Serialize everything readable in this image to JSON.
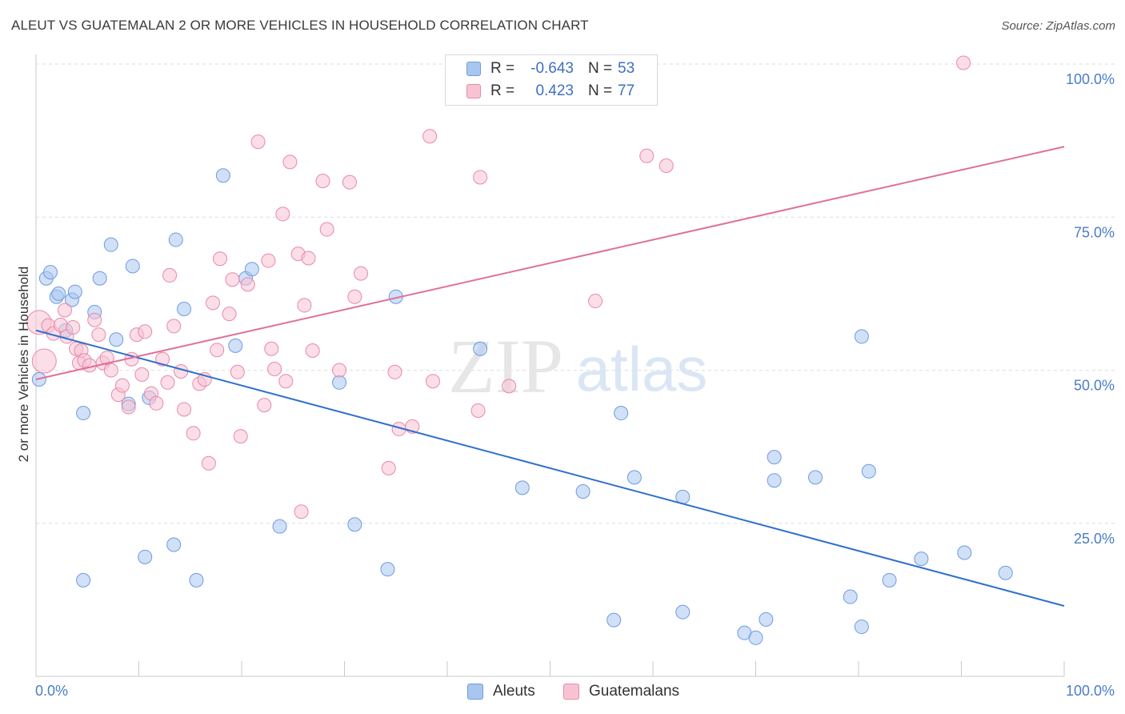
{
  "title": "ALEUT VS GUATEMALAN 2 OR MORE VEHICLES IN HOUSEHOLD CORRELATION CHART",
  "source": "Source: ZipAtlas.com",
  "watermark": {
    "zip": "ZIP",
    "atlas": "atlas"
  },
  "legend": {
    "r_label": "R =",
    "n_label": "N =",
    "rows": [
      {
        "r": "-0.643",
        "n": "53",
        "color": "#a9c6f0",
        "border": "#6f9be0"
      },
      {
        "r": "0.423",
        "n": "77",
        "color": "#f7c3d3",
        "border": "#e889a8"
      }
    ]
  },
  "bottom_legend": [
    {
      "label": "Aleuts",
      "color": "#a9c6f0",
      "border": "#6f9be0"
    },
    {
      "label": "Guatemalans",
      "color": "#f7c3d3",
      "border": "#e889a8"
    }
  ],
  "chart_data": {
    "type": "scatter",
    "ylabel": "2 or more Vehicles in Household",
    "xlim": [
      0,
      100
    ],
    "ylim": [
      0,
      100
    ],
    "x_tick_labels": [
      "0.0%",
      "100.0%"
    ],
    "y_tick_labels": [
      "25.0%",
      "50.0%",
      "75.0%",
      "100.0%"
    ],
    "y_ticks": [
      25,
      50,
      75,
      100
    ],
    "grid": true,
    "series": [
      {
        "name": "Aleuts",
        "color": "#a9c6f0",
        "stroke": "#6f9be0",
        "trend": {
          "x": [
            0,
            100
          ],
          "y": [
            56.5,
            11.5
          ],
          "color": "#2f6fcf"
        },
        "points": [
          [
            0.3,
            48.5
          ],
          [
            1.0,
            65.0
          ],
          [
            1.4,
            66.0
          ],
          [
            2.0,
            62.0
          ],
          [
            2.2,
            62.5
          ],
          [
            2.9,
            56.5
          ],
          [
            3.5,
            61.5
          ],
          [
            3.8,
            62.8
          ],
          [
            4.6,
            43.0
          ],
          [
            4.6,
            15.7
          ],
          [
            5.7,
            59.5
          ],
          [
            6.2,
            65.0
          ],
          [
            7.3,
            70.5
          ],
          [
            7.8,
            55.0
          ],
          [
            9.0,
            44.5
          ],
          [
            9.4,
            67.0
          ],
          [
            10.6,
            19.5
          ],
          [
            11.0,
            45.5
          ],
          [
            13.4,
            21.5
          ],
          [
            13.6,
            71.3
          ],
          [
            14.4,
            60.0
          ],
          [
            15.6,
            15.7
          ],
          [
            18.2,
            81.8
          ],
          [
            19.4,
            54.0
          ],
          [
            20.4,
            65.0
          ],
          [
            21.0,
            66.5
          ],
          [
            23.7,
            24.5
          ],
          [
            29.5,
            48.0
          ],
          [
            31.0,
            24.8
          ],
          [
            34.2,
            17.5
          ],
          [
            35.0,
            62.0
          ],
          [
            43.2,
            53.5
          ],
          [
            47.3,
            30.8
          ],
          [
            53.2,
            30.2
          ],
          [
            56.2,
            9.2
          ],
          [
            56.9,
            43.0
          ],
          [
            58.2,
            32.5
          ],
          [
            62.9,
            10.5
          ],
          [
            62.9,
            29.3
          ],
          [
            68.9,
            7.1
          ],
          [
            70.0,
            6.3
          ],
          [
            71.0,
            9.3
          ],
          [
            71.8,
            32.0
          ],
          [
            71.8,
            35.8
          ],
          [
            75.8,
            32.5
          ],
          [
            79.2,
            13.0
          ],
          [
            80.3,
            8.1
          ],
          [
            80.3,
            55.5
          ],
          [
            81.0,
            33.5
          ],
          [
            83.0,
            15.7
          ],
          [
            86.1,
            19.2
          ],
          [
            90.3,
            20.2
          ],
          [
            94.3,
            16.9
          ]
        ]
      },
      {
        "name": "Guatemalans",
        "color": "#f7c3d3",
        "stroke": "#e889a8",
        "trend": {
          "x": [
            0,
            100
          ],
          "y": [
            48.5,
            86.5
          ],
          "color": "#e0709a"
        },
        "points": [
          [
            0.3,
            57.8
          ],
          [
            0.8,
            51.5
          ],
          [
            1.2,
            57.3
          ],
          [
            1.7,
            56.0
          ],
          [
            2.4,
            57.4
          ],
          [
            2.8,
            59.8
          ],
          [
            3.0,
            55.5
          ],
          [
            3.6,
            57.0
          ],
          [
            3.9,
            53.5
          ],
          [
            4.2,
            51.2
          ],
          [
            4.4,
            53.2
          ],
          [
            4.7,
            51.6
          ],
          [
            5.2,
            50.8
          ],
          [
            5.7,
            58.2
          ],
          [
            6.1,
            55.8
          ],
          [
            6.5,
            51.2
          ],
          [
            6.9,
            52.0
          ],
          [
            7.3,
            50.0
          ],
          [
            8.0,
            46.0
          ],
          [
            8.4,
            47.5
          ],
          [
            9.0,
            44.0
          ],
          [
            9.3,
            51.8
          ],
          [
            9.8,
            55.8
          ],
          [
            10.3,
            49.3
          ],
          [
            10.6,
            56.3
          ],
          [
            11.2,
            46.2
          ],
          [
            11.7,
            44.6
          ],
          [
            12.3,
            51.8
          ],
          [
            12.8,
            48.0
          ],
          [
            13.0,
            65.5
          ],
          [
            13.4,
            57.2
          ],
          [
            14.1,
            49.8
          ],
          [
            14.4,
            43.6
          ],
          [
            15.3,
            39.7
          ],
          [
            15.9,
            47.8
          ],
          [
            16.4,
            48.5
          ],
          [
            16.8,
            34.8
          ],
          [
            17.2,
            61.0
          ],
          [
            17.6,
            53.3
          ],
          [
            17.9,
            68.2
          ],
          [
            18.8,
            59.2
          ],
          [
            19.1,
            64.8
          ],
          [
            19.6,
            49.7
          ],
          [
            19.9,
            39.2
          ],
          [
            20.6,
            64.0
          ],
          [
            21.6,
            87.3
          ],
          [
            22.2,
            44.3
          ],
          [
            22.6,
            67.9
          ],
          [
            22.9,
            53.5
          ],
          [
            23.2,
            50.2
          ],
          [
            24.0,
            75.5
          ],
          [
            24.3,
            48.2
          ],
          [
            24.7,
            84.0
          ],
          [
            25.5,
            69.0
          ],
          [
            25.8,
            26.9
          ],
          [
            26.1,
            60.6
          ],
          [
            26.5,
            68.3
          ],
          [
            26.9,
            53.2
          ],
          [
            27.9,
            80.9
          ],
          [
            28.3,
            73.0
          ],
          [
            29.5,
            50.0
          ],
          [
            30.5,
            80.7
          ],
          [
            31.0,
            62.0
          ],
          [
            31.6,
            65.8
          ],
          [
            34.3,
            34.0
          ],
          [
            34.9,
            49.7
          ],
          [
            35.3,
            40.4
          ],
          [
            36.6,
            40.8
          ],
          [
            38.3,
            88.2
          ],
          [
            38.6,
            48.2
          ],
          [
            43.0,
            43.4
          ],
          [
            43.2,
            81.5
          ],
          [
            46.0,
            47.4
          ],
          [
            54.4,
            61.3
          ],
          [
            59.4,
            85.0
          ],
          [
            61.3,
            83.4
          ],
          [
            90.2,
            100.2
          ]
        ]
      }
    ]
  }
}
